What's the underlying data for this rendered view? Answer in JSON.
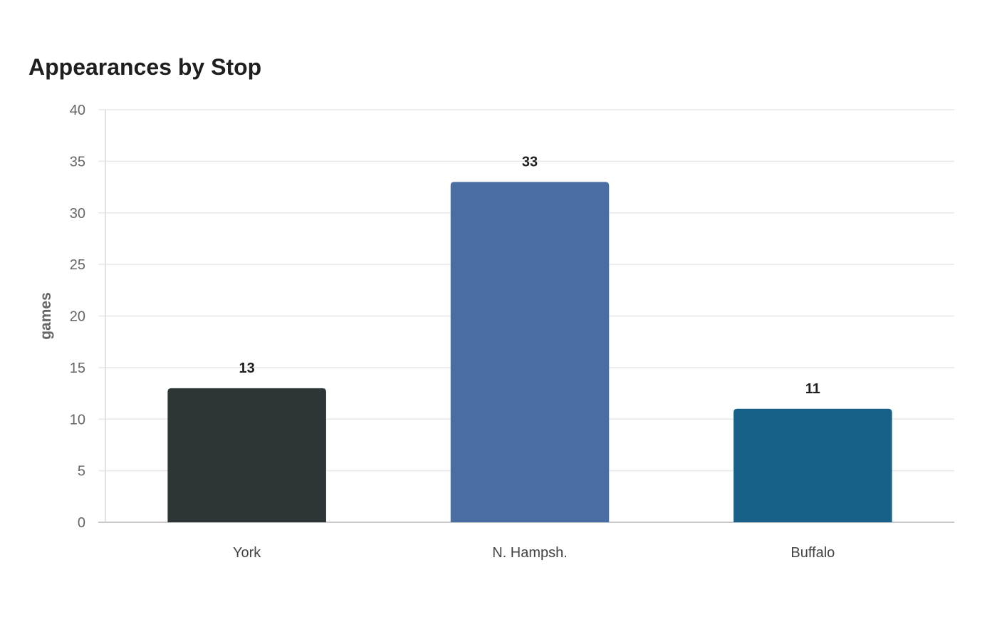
{
  "chart_data": {
    "type": "bar",
    "title": "Appearances by Stop",
    "xlabel": "",
    "ylabel": "games",
    "categories": [
      "York",
      "N. Hampsh.",
      "Buffalo"
    ],
    "values": [
      13,
      33,
      11
    ],
    "colors": [
      "#2e3537",
      "#4a6ea3",
      "#176087"
    ],
    "ylim": [
      0,
      40
    ],
    "yticks": [
      0,
      5,
      10,
      15,
      20,
      25,
      30,
      35,
      40
    ],
    "grid": true,
    "legend": "none",
    "data_labels": true
  }
}
